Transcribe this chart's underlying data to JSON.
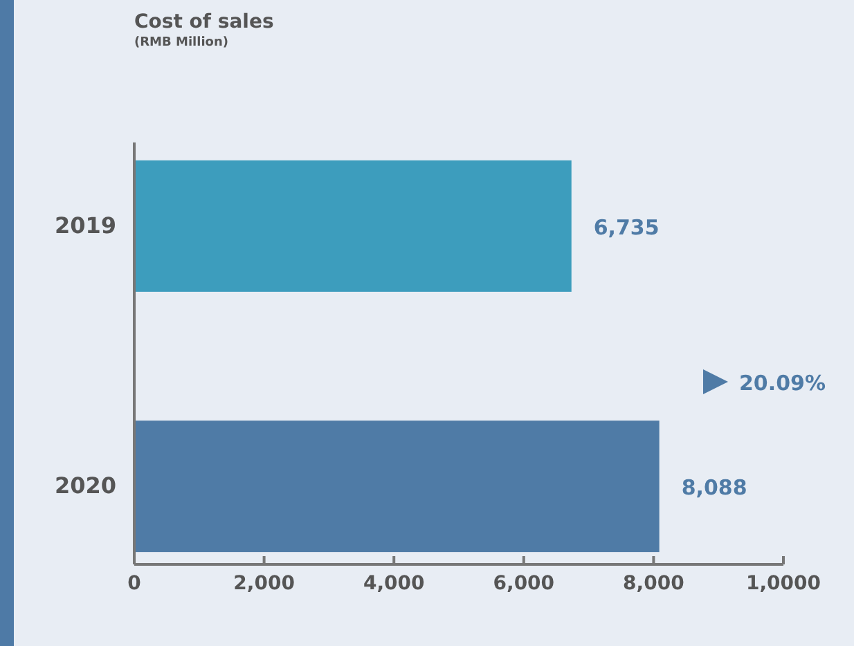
{
  "chart_data": {
    "type": "bar",
    "orientation": "horizontal",
    "title": "Cost of sales",
    "subtitle": "(RMB Million)",
    "categories": [
      "2019",
      "2020"
    ],
    "values": [
      6735,
      8088
    ],
    "colors": [
      "#3d9dbd",
      "#4f7ba6"
    ],
    "xlim": [
      0,
      10000
    ],
    "xticks": [
      0,
      {
        "value": 2000,
        "label": "2,000"
      },
      {
        "value": 4000,
        "label": "4,000"
      },
      {
        "value": 6000,
        "label": "6,000"
      },
      {
        "value": 8000,
        "label": "8,000"
      },
      {
        "value": 10000,
        "label": "1,0000"
      }
    ],
    "value_labels": [
      "6,735",
      "8,088"
    ],
    "grid": false,
    "annotations": [
      "20.09%"
    ]
  }
}
